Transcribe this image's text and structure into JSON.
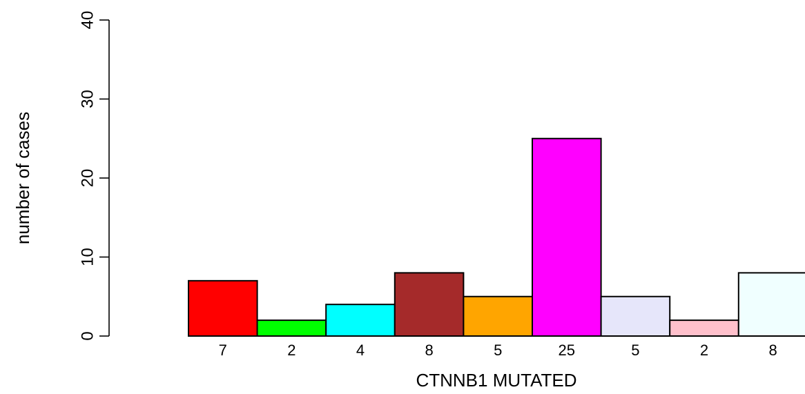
{
  "chart_data": {
    "type": "bar",
    "title": "",
    "xlabel": "CTNNB1 MUTATED",
    "ylabel": "number of cases",
    "ylim": [
      0,
      40
    ],
    "yticks": [
      0,
      10,
      20,
      30,
      40
    ],
    "grid": false,
    "legend": "none",
    "values": [
      7,
      2,
      4,
      8,
      5,
      25,
      5,
      2,
      8
    ],
    "value_labels": [
      "7",
      "2",
      "4",
      "8",
      "5",
      "25",
      "5",
      "2",
      "8"
    ],
    "colors": [
      "#ff0000",
      "#00ff00",
      "#00ffff",
      "#a52a2a",
      "#ffa500",
      "#ff00ff",
      "#e6e6fa",
      "#ffc0cb",
      "#f0ffff"
    ]
  }
}
